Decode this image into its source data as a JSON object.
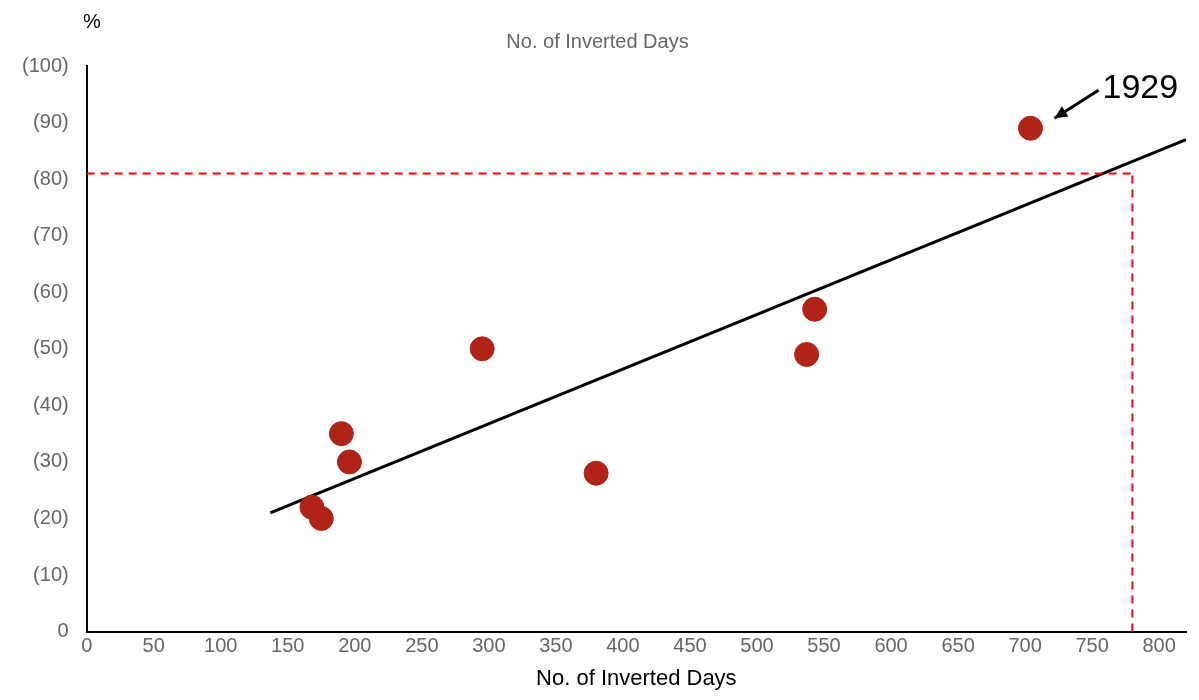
{
  "chart_data": {
    "type": "scatter",
    "title": "No. of Inverted Days",
    "xlabel": "No. of Inverted Days",
    "ylabel": "%",
    "xlim": [
      0,
      820
    ],
    "xticks": [
      0,
      50,
      100,
      150,
      200,
      250,
      300,
      350,
      400,
      450,
      500,
      550,
      600,
      650,
      700,
      750,
      800
    ],
    "ylim": [
      0,
      100
    ],
    "yticks": [
      0,
      {
        "value": 10,
        "label": "(10)"
      },
      {
        "value": 20,
        "label": "(20)"
      },
      {
        "value": 30,
        "label": "(30)"
      },
      {
        "value": 40,
        "label": "(40)"
      },
      {
        "value": 50,
        "label": "(50)"
      },
      {
        "value": 60,
        "label": "(60)"
      },
      {
        "value": 70,
        "label": "(70)"
      },
      {
        "value": 80,
        "label": "(80)"
      },
      {
        "value": 90,
        "label": "(90)"
      },
      {
        "value": 100,
        "label": "(100)"
      }
    ],
    "grid": false,
    "legend": false,
    "marker": "circle",
    "series": [
      {
        "type": "scatter",
        "color": "#b02418",
        "x": [
          168,
          175,
          190,
          196,
          295,
          380,
          537,
          543,
          704
        ],
        "values": [
          22,
          20,
          35,
          30,
          50,
          28,
          49,
          57,
          89
        ]
      },
      {
        "type": "line",
        "color": "#000000",
        "marker": "none",
        "x": [
          137,
          820
        ],
        "values": [
          21,
          87
        ]
      }
    ],
    "ref_lines": [
      {
        "axis": "y",
        "value": 81,
        "color": "#ff0000",
        "line_style": "dashed"
      },
      {
        "axis": "x",
        "value": 780,
        "color": "#ff0000",
        "line_style": "dashed"
      }
    ],
    "annotations": [
      {
        "text": "1929",
        "x": 704,
        "y": 89
      }
    ]
  }
}
